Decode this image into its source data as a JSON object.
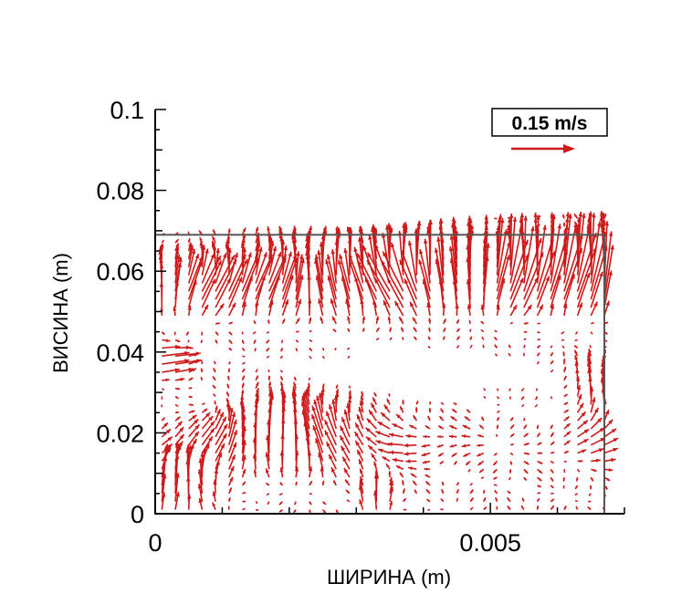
{
  "chart_data": {
    "type": "vector-field",
    "title": "",
    "xlabel": "ШИРИНА (m)",
    "ylabel": "ВИСИНА (m)",
    "xlim": [
      0,
      0.007
    ],
    "ylim": [
      0,
      0.1
    ],
    "x_ticks": [
      {
        "value": 0,
        "label": "0"
      },
      {
        "value": 0.005,
        "label": "0.005"
      }
    ],
    "y_ticks": [
      {
        "value": 0,
        "label": "0"
      },
      {
        "value": 0.02,
        "label": "0.02"
      },
      {
        "value": 0.04,
        "label": "0.04"
      },
      {
        "value": 0.06,
        "label": "0.06"
      },
      {
        "value": 0.08,
        "label": "0.08"
      },
      {
        "value": 0.1,
        "label": "0.1"
      }
    ],
    "domain_box": {
      "x": [
        0,
        0.0067
      ],
      "y": [
        0,
        0.069
      ]
    },
    "reference_vector": {
      "label": "0.15 m/s",
      "magnitude": 0.15
    },
    "vector_color": "#cc1a1a",
    "grid_spacing": {
      "dx": 0.0002,
      "dy": 0.002
    },
    "sample_vectors": [
      {
        "x": 0.0001,
        "y": 0.004,
        "u": 0.0,
        "v": 0.12
      },
      {
        "x": 0.0004,
        "y": 0.012,
        "u": 0.0,
        "v": 0.08
      },
      {
        "x": 0.0016,
        "y": 0.018,
        "u": 0.0,
        "v": 0.09
      },
      {
        "x": 0.0022,
        "y": 0.02,
        "u": 0.0,
        "v": 0.1
      },
      {
        "x": 0.0026,
        "y": 0.052,
        "u": 0.03,
        "v": 0.07
      },
      {
        "x": 0.0061,
        "y": 0.064,
        "u": 0.0,
        "v": 0.14
      },
      {
        "x": 0.0066,
        "y": 0.066,
        "u": 0.0,
        "v": 0.15
      },
      {
        "x": 0.0066,
        "y": 0.032,
        "u": 0.0,
        "v": 0.06
      },
      {
        "x": 0.0033,
        "y": 0.004,
        "u": 0.0,
        "v": 0.07
      }
    ]
  }
}
